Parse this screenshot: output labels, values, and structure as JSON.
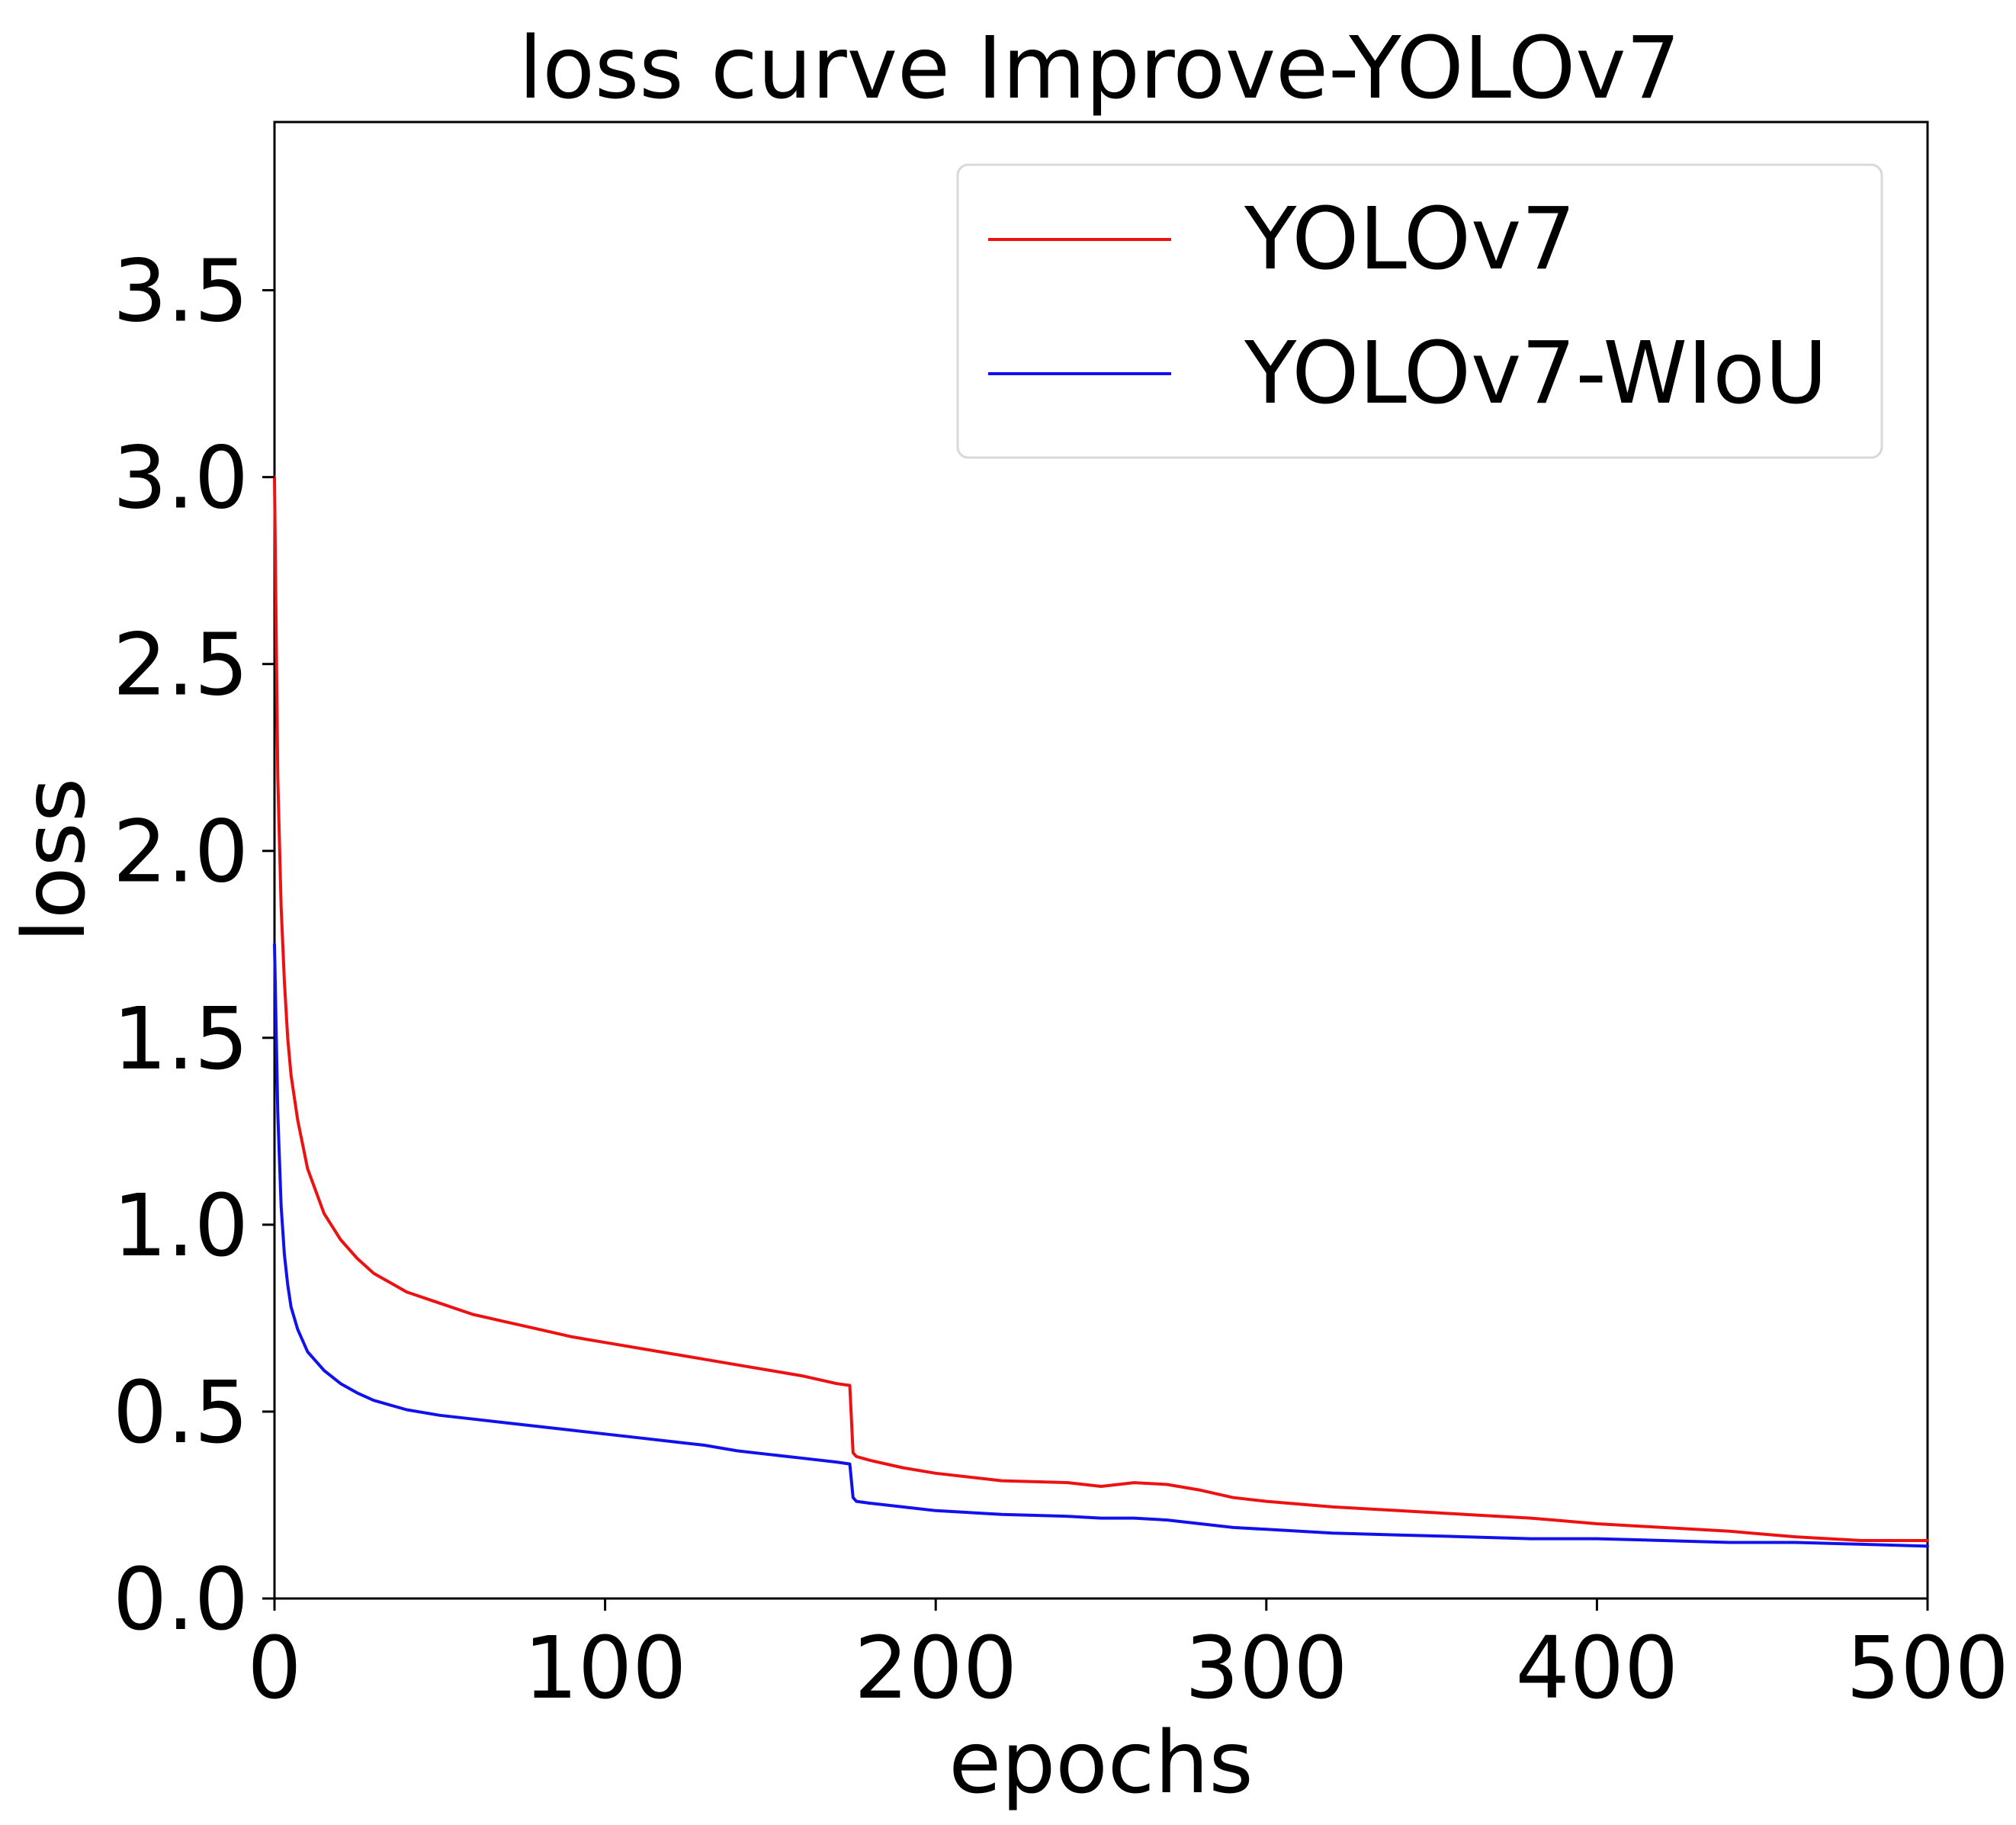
{
  "chart_data": {
    "type": "line",
    "title": "loss curve Improve-YOLOv7",
    "xlabel": "epochs",
    "ylabel": "loss",
    "xlim": [
      0,
      500
    ],
    "ylim": [
      0,
      3.95
    ],
    "xticks": [
      0,
      100,
      200,
      300,
      400,
      500
    ],
    "xtick_labels": [
      "0",
      "100",
      "200",
      "300",
      "400",
      "500"
    ],
    "yticks": [
      0.0,
      0.5,
      1.0,
      1.5,
      2.0,
      2.5,
      3.0,
      3.5
    ],
    "ytick_labels": [
      "0.0",
      "0.5",
      "1.0",
      "1.5",
      "2.0",
      "2.5",
      "3.0",
      "3.5"
    ],
    "grid": false,
    "legend_position": "top-right",
    "series": [
      {
        "name": "YOLOv7",
        "color": "#ee1111",
        "x": [
          0,
          1,
          2,
          3,
          4,
          5,
          7,
          10,
          15,
          20,
          25,
          30,
          40,
          50,
          60,
          70,
          80,
          90,
          100,
          110,
          120,
          130,
          140,
          150,
          160,
          170,
          174,
          175,
          176,
          180,
          190,
          200,
          220,
          240,
          250,
          260,
          270,
          280,
          290,
          300,
          320,
          340,
          360,
          380,
          400,
          420,
          440,
          460,
          480,
          500
        ],
        "y": [
          3.0,
          2.2,
          1.85,
          1.65,
          1.5,
          1.4,
          1.28,
          1.15,
          1.03,
          0.96,
          0.91,
          0.87,
          0.82,
          0.79,
          0.76,
          0.74,
          0.72,
          0.7,
          0.685,
          0.67,
          0.655,
          0.64,
          0.625,
          0.61,
          0.595,
          0.575,
          0.57,
          0.39,
          0.38,
          0.37,
          0.35,
          0.335,
          0.315,
          0.31,
          0.3,
          0.31,
          0.305,
          0.29,
          0.27,
          0.26,
          0.245,
          0.235,
          0.225,
          0.215,
          0.2,
          0.19,
          0.18,
          0.165,
          0.155,
          0.155
        ]
      },
      {
        "name": "YOLOv7-WIoU",
        "color": "#1111ee",
        "x": [
          0,
          1,
          2,
          3,
          4,
          5,
          7,
          10,
          15,
          20,
          25,
          30,
          40,
          50,
          60,
          70,
          80,
          90,
          100,
          110,
          120,
          130,
          140,
          150,
          160,
          170,
          174,
          175,
          176,
          180,
          190,
          200,
          220,
          240,
          250,
          260,
          270,
          280,
          290,
          300,
          320,
          340,
          360,
          380,
          400,
          420,
          440,
          460,
          480,
          500
        ],
        "y": [
          1.75,
          1.3,
          1.05,
          0.92,
          0.84,
          0.78,
          0.72,
          0.66,
          0.61,
          0.575,
          0.55,
          0.53,
          0.505,
          0.49,
          0.48,
          0.47,
          0.46,
          0.45,
          0.44,
          0.43,
          0.42,
          0.41,
          0.395,
          0.385,
          0.375,
          0.365,
          0.36,
          0.27,
          0.26,
          0.255,
          0.245,
          0.235,
          0.225,
          0.22,
          0.215,
          0.215,
          0.21,
          0.2,
          0.19,
          0.185,
          0.175,
          0.17,
          0.165,
          0.16,
          0.16,
          0.155,
          0.15,
          0.15,
          0.145,
          0.14
        ]
      }
    ]
  }
}
